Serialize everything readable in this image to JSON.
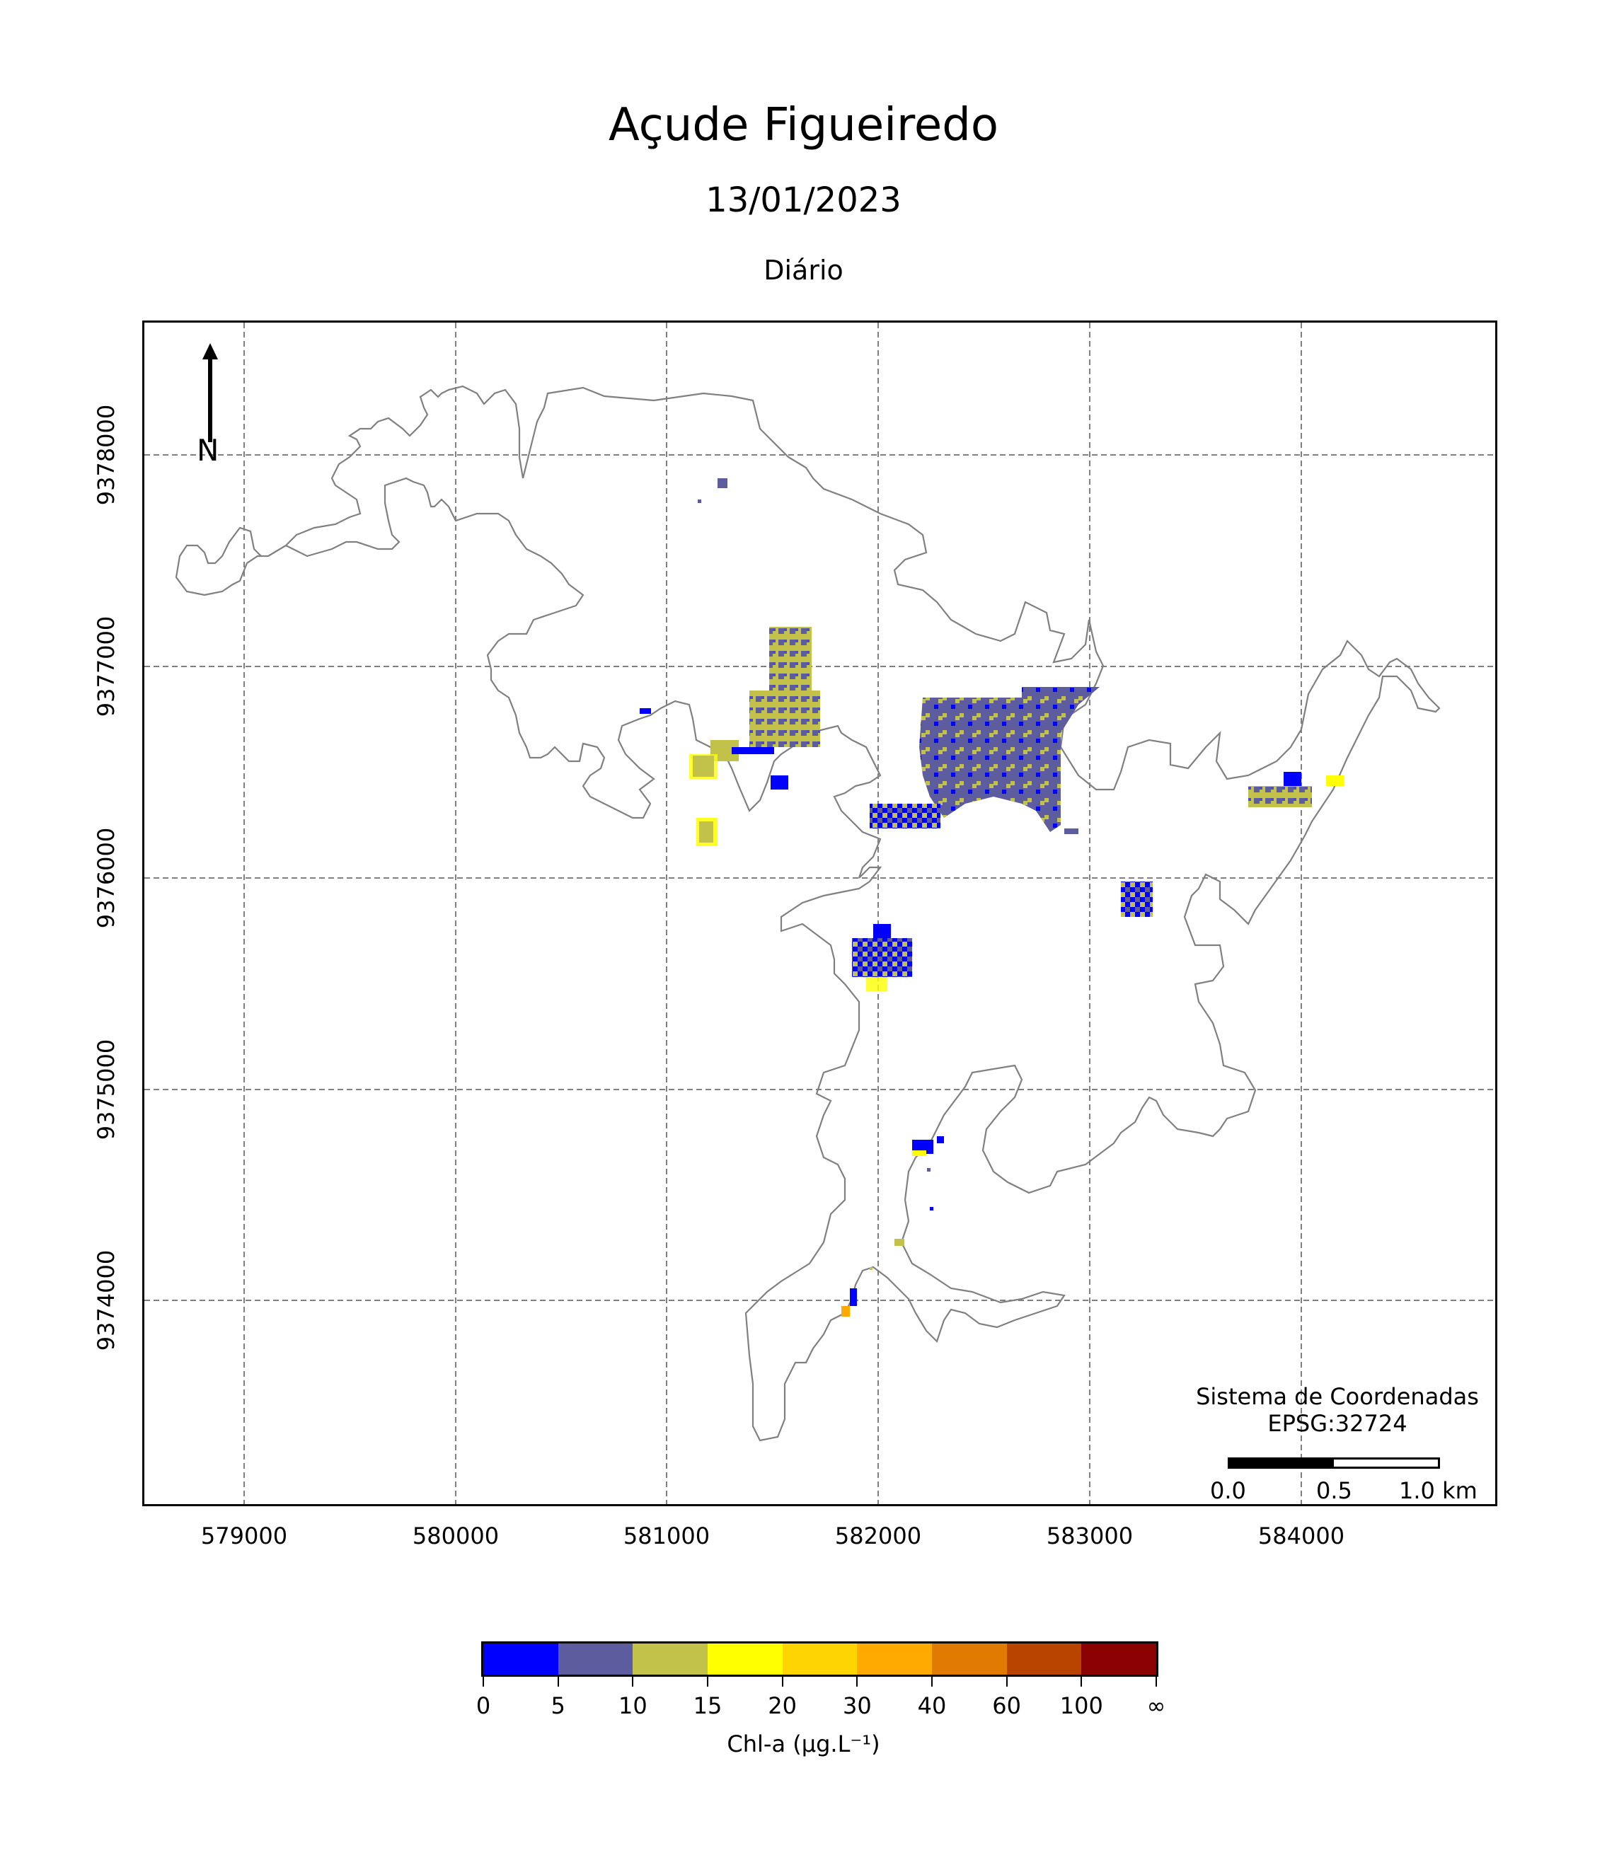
{
  "title": "Açude Figueiredo",
  "date": "13/01/2023",
  "period": "Diário",
  "axes": {
    "x_ticks": [
      "579000",
      "580000",
      "581000",
      "582000",
      "583000",
      "584000"
    ],
    "y_ticks": [
      "9378000",
      "9377000",
      "9376000",
      "9375000",
      "9374000"
    ]
  },
  "north_label": "N",
  "crs": {
    "line1": "Sistema de Coordenadas",
    "line2": "EPSG:32724"
  },
  "scale_bar": {
    "labels": [
      "0.0",
      "0.5",
      "1.0 km"
    ]
  },
  "colorbar": {
    "label": "Chl-a (μg.L⁻¹)",
    "ticks": [
      "0",
      "5",
      "10",
      "15",
      "20",
      "30",
      "40",
      "60",
      "100",
      "∞"
    ],
    "colors": [
      "#0000ff",
      "#5c5c9e",
      "#c2c24a",
      "#ffff00",
      "#ffd500",
      "#ffaa00",
      "#e07a00",
      "#b84400",
      "#8b0000"
    ]
  },
  "colors": {
    "grid": "#808080",
    "outline": "#808080"
  }
}
